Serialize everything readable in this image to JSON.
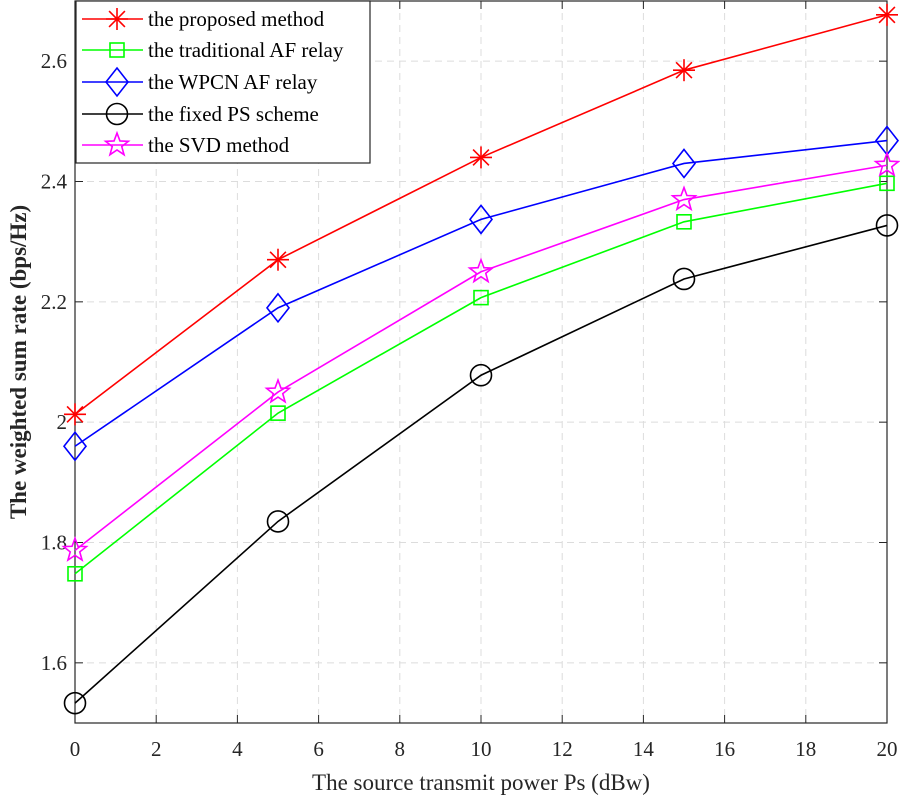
{
  "chart_data": {
    "type": "line",
    "title": "",
    "xlabel": "The source transmit power Ps (dBw)",
    "ylabel": "The weighted sum rate (bps/Hz)",
    "xlim": [
      0,
      20
    ],
    "ylim": [
      1.5,
      2.7
    ],
    "xticks": [
      0,
      2,
      4,
      6,
      8,
      10,
      12,
      14,
      16,
      18,
      20
    ],
    "xtick_labels": [
      "0",
      "2",
      "4",
      "6",
      "8",
      "10",
      "12",
      "14",
      "16",
      "18",
      "20"
    ],
    "yticks": [
      1.6,
      1.8,
      2.0,
      2.2,
      2.4,
      2.6
    ],
    "ytick_labels": [
      "1.6",
      "1.8",
      "2",
      "2.2",
      "2.4",
      "2.6"
    ],
    "grid": true,
    "legend_position": "top-left",
    "x": [
      0,
      5,
      10,
      15,
      20
    ],
    "series": [
      {
        "name": "the proposed method",
        "color": "#ff0000",
        "marker": "asterisk",
        "values": [
          2.013,
          2.27,
          2.44,
          2.585,
          2.677
        ]
      },
      {
        "name": "the traditional AF relay",
        "color": "#00ff00",
        "marker": "square",
        "values": [
          1.748,
          2.015,
          2.207,
          2.333,
          2.397
        ]
      },
      {
        "name": "the WPCN AF relay",
        "color": "#0000ff",
        "marker": "diamond",
        "values": [
          1.96,
          2.19,
          2.337,
          2.43,
          2.468
        ]
      },
      {
        "name": "the fixed PS scheme",
        "color": "#000000",
        "marker": "circle",
        "values": [
          1.533,
          1.835,
          2.078,
          2.238,
          2.327
        ]
      },
      {
        "name": "the SVD method",
        "color": "#ff00ff",
        "marker": "pentagram",
        "values": [
          1.787,
          2.05,
          2.25,
          2.37,
          2.427
        ]
      }
    ]
  }
}
